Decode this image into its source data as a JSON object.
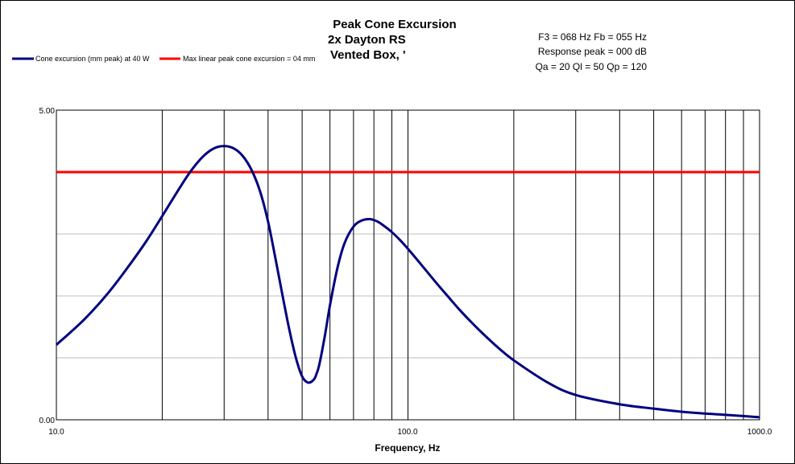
{
  "chart_data": {
    "type": "line",
    "title_lines": [
      "Peak Cone Excursion",
      "2x Dayton RS",
      "Vented Box, '"
    ],
    "info_lines": [
      "F3 = 068 Hz  Fb = 055 Hz",
      "Response  peak = 000 dB",
      "Qa = 20  Ql = 50  Qp = 120"
    ],
    "xlabel": "Frequency, Hz",
    "ylabel": "",
    "x_scale": "log",
    "xlim": [
      10,
      1000
    ],
    "ylim": [
      0,
      5
    ],
    "x_tick_labels": [
      "10.0",
      "100.0",
      "1000.0"
    ],
    "y_tick_labels": [
      "5.00",
      "0.00"
    ],
    "legend_position": "top-left",
    "grid": true,
    "series": [
      {
        "name": "Cone excursion (mm peak) at 40 W",
        "color": "#000080",
        "x": [
          10,
          12,
          14,
          16,
          18,
          20,
          22,
          24,
          26,
          28,
          30,
          32,
          34,
          36,
          38,
          40,
          42,
          44,
          46,
          48,
          50,
          52,
          54,
          55,
          56,
          58,
          60,
          63,
          66,
          70,
          74,
          78,
          82,
          86,
          90,
          95,
          100,
          110,
          120,
          130,
          140,
          150,
          160,
          180,
          200,
          250,
          300,
          400,
          500,
          600,
          700,
          800,
          900,
          1000
        ],
        "y": [
          1.21,
          1.62,
          2.04,
          2.47,
          2.88,
          3.29,
          3.67,
          4.0,
          4.24,
          4.38,
          4.42,
          4.38,
          4.25,
          4.02,
          3.68,
          3.2,
          2.6,
          2.0,
          1.45,
          1.0,
          0.7,
          0.6,
          0.65,
          0.75,
          0.9,
          1.35,
          1.85,
          2.45,
          2.85,
          3.12,
          3.22,
          3.24,
          3.2,
          3.12,
          3.03,
          2.9,
          2.76,
          2.48,
          2.22,
          1.99,
          1.78,
          1.6,
          1.44,
          1.17,
          0.96,
          0.6,
          0.4,
          0.25,
          0.18,
          0.13,
          0.1,
          0.08,
          0.06,
          0.04
        ]
      },
      {
        "name": "Max linear peak cone excursion = 04 mm",
        "color": "#ff0000",
        "x": [
          10,
          1000
        ],
        "y": [
          4.0,
          4.0
        ]
      }
    ]
  }
}
